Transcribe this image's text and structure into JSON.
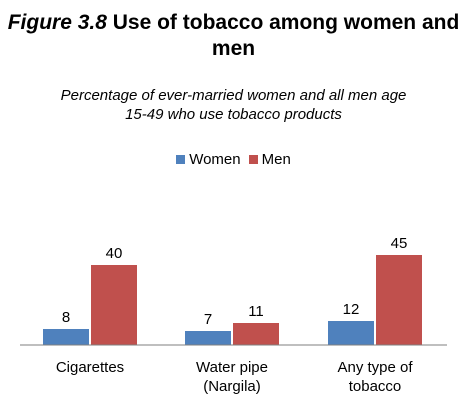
{
  "chart_data": {
    "type": "bar",
    "figure_label": "Figure 3.8",
    "title": "Use of tobacco among women and men",
    "subtitle": "Percentage of ever-married women and all men age 15-49 who use tobacco products",
    "categories": [
      [
        "Cigarettes"
      ],
      [
        "Water pipe",
        "(Nargila)"
      ],
      [
        "Any type of",
        "tobacco"
      ]
    ],
    "series": [
      {
        "name": "Women",
        "color": "#4f81bd",
        "values": [
          8,
          7,
          12
        ]
      },
      {
        "name": "Men",
        "color": "#c0504d",
        "values": [
          40,
          11,
          45
        ]
      }
    ],
    "legend_position": "top-center",
    "grid": false
  }
}
